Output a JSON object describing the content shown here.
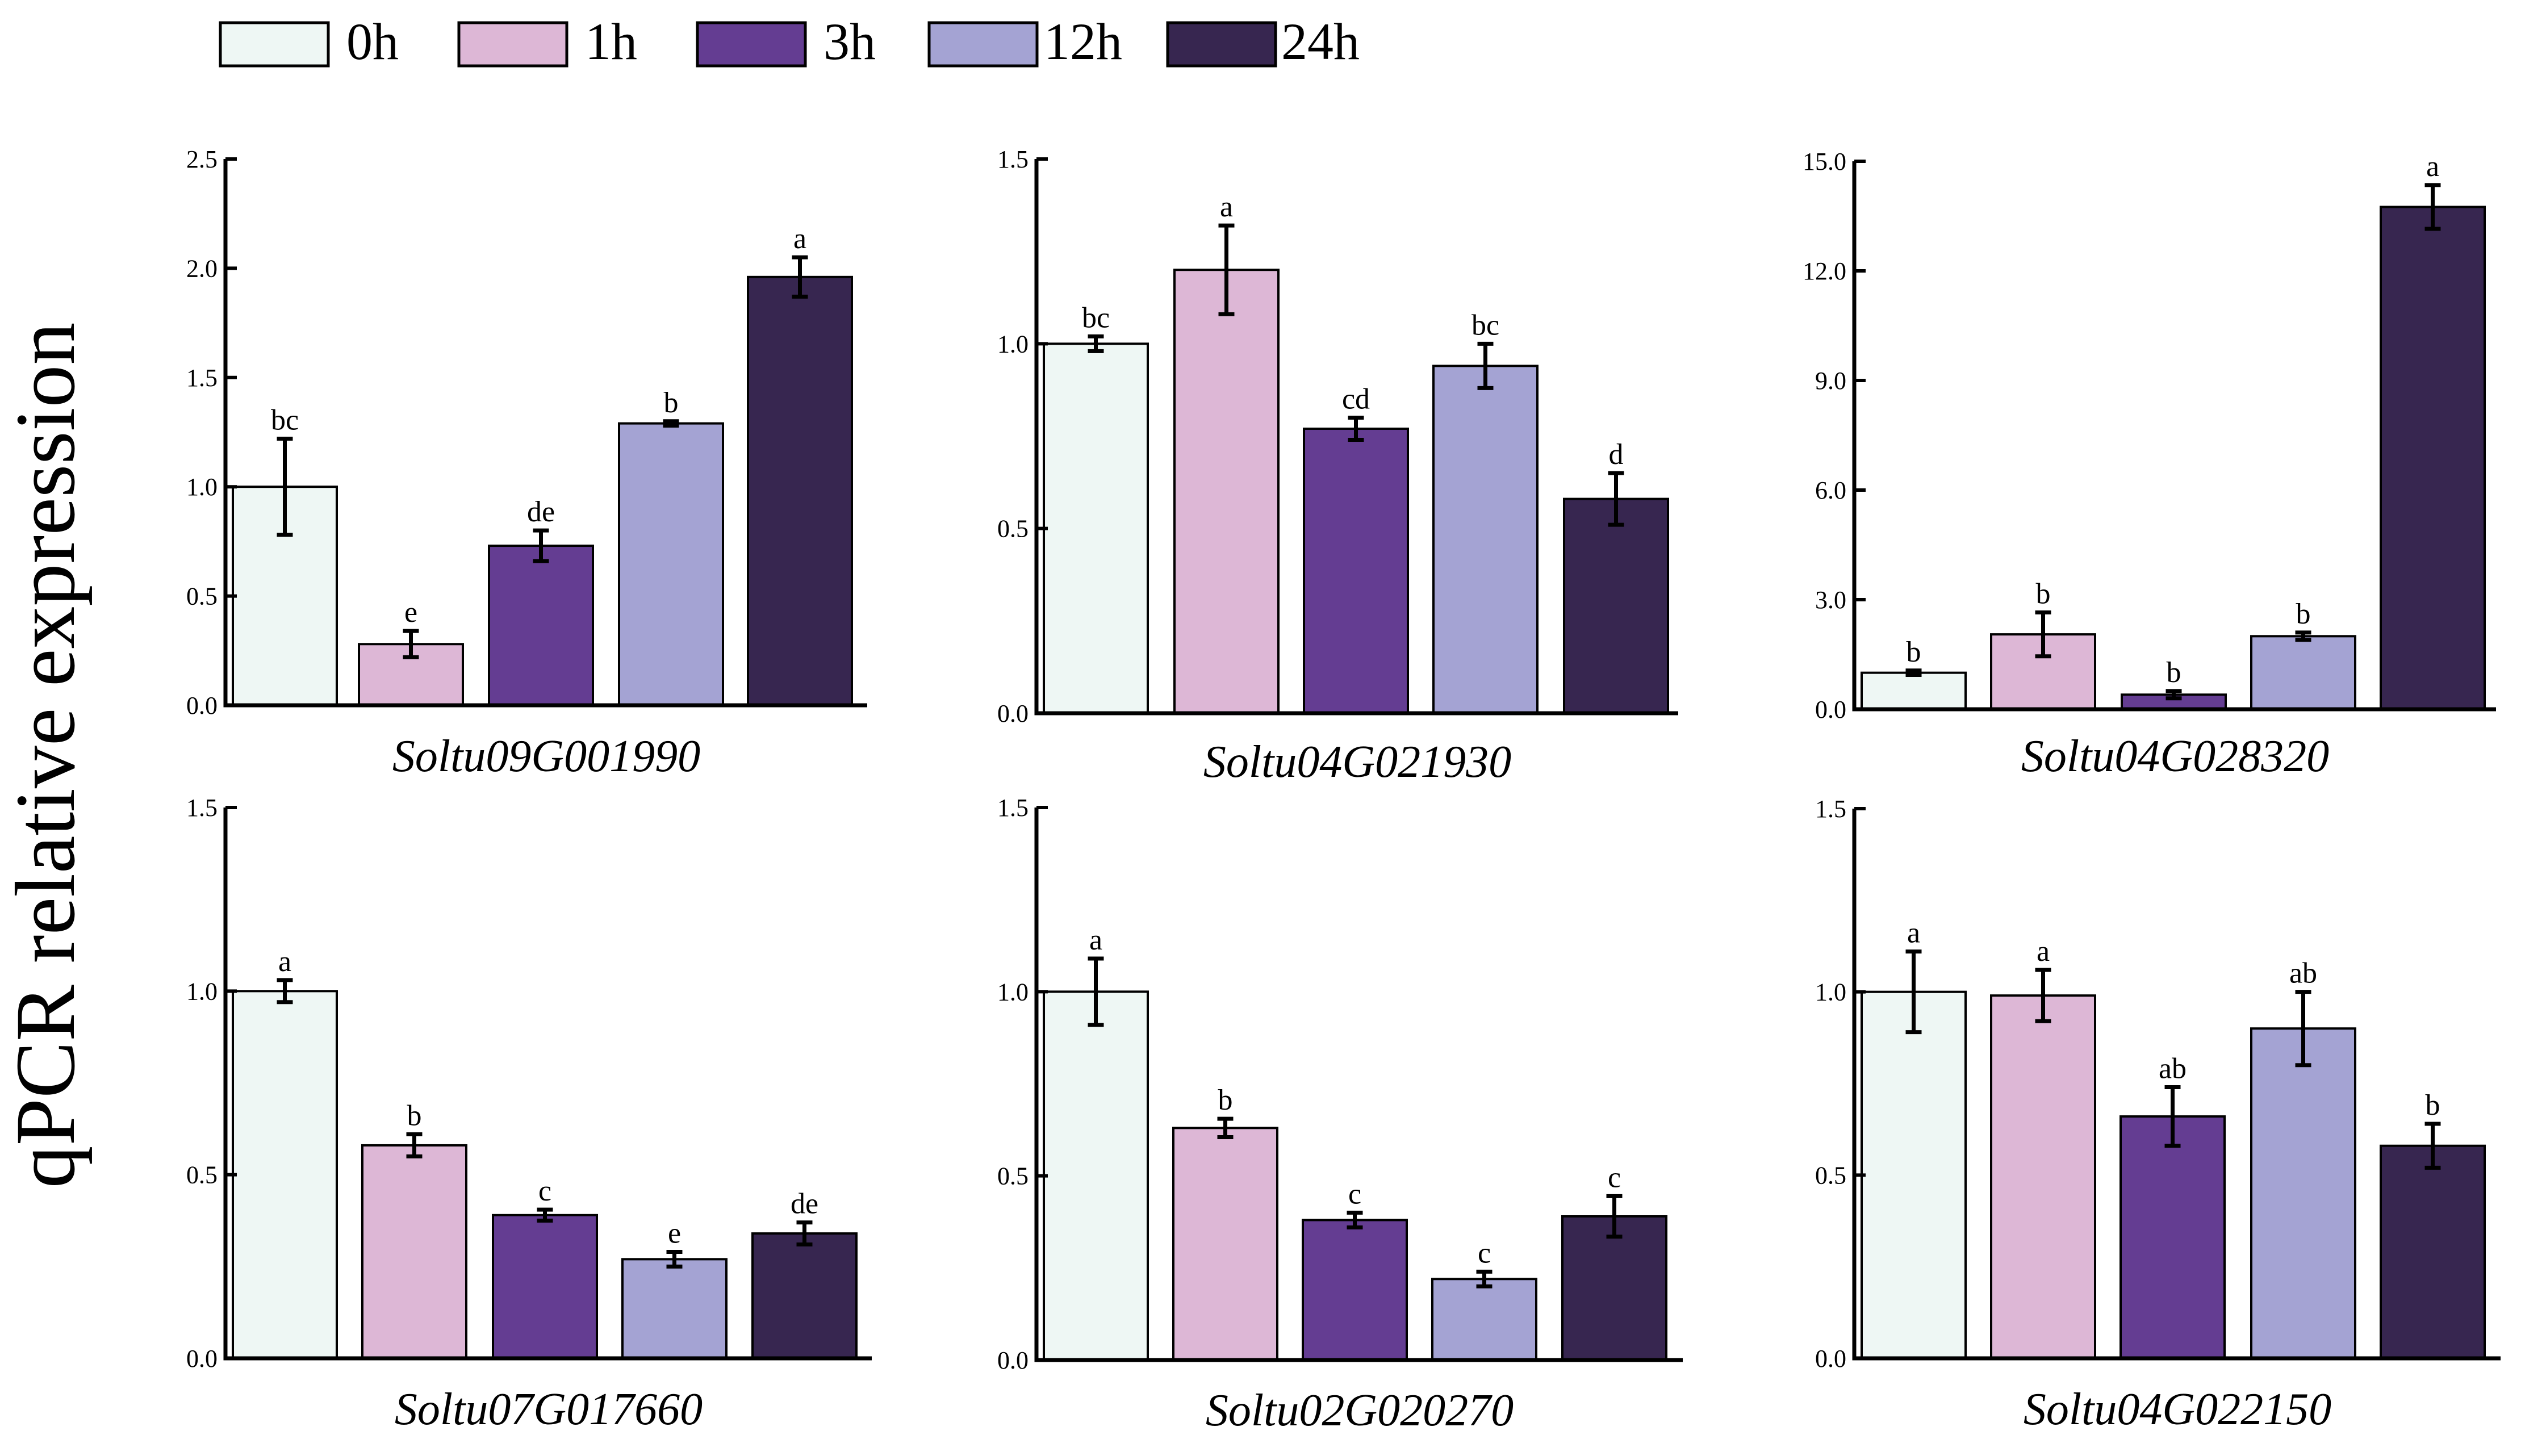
{
  "ylabel": "qPCR relative expression",
  "legend": [
    {
      "label": "0h",
      "color": "#eef7f4"
    },
    {
      "label": "1h",
      "color": "#ddb7d6"
    },
    {
      "label": "3h",
      "color": "#643d92"
    },
    {
      "label": "12h",
      "color": "#a4a3d3"
    },
    {
      "label": "24h",
      "color": "#372650"
    }
  ],
  "chart_data": [
    {
      "type": "bar",
      "title": "Soltu09G001990",
      "categories": [
        "0h",
        "1h",
        "3h",
        "12h",
        "24h"
      ],
      "values": [
        1.0,
        0.28,
        0.73,
        1.29,
        1.96
      ],
      "errors": [
        0.22,
        0.06,
        0.07,
        0.01,
        0.09
      ],
      "letters": [
        "bc",
        "e",
        "de",
        "b",
        "a"
      ],
      "ylim": [
        0,
        2.5
      ],
      "ticks": [
        "0.0",
        "0.5",
        "1.0",
        "1.5",
        "2.0",
        "2.5"
      ]
    },
    {
      "type": "bar",
      "title": "Soltu04G021930",
      "categories": [
        "0h",
        "1h",
        "3h",
        "12h",
        "24h"
      ],
      "values": [
        1.0,
        1.2,
        0.77,
        0.94,
        0.58
      ],
      "errors": [
        0.02,
        0.12,
        0.03,
        0.06,
        0.07
      ],
      "letters": [
        "bc",
        "a",
        "cd",
        "bc",
        "d"
      ],
      "ylim": [
        0,
        1.5
      ],
      "ticks": [
        "0.0",
        "0.5",
        "1.0",
        "1.5"
      ]
    },
    {
      "type": "bar",
      "title": "Soltu04G028320",
      "categories": [
        "0h",
        "1h",
        "3h",
        "12h",
        "24h"
      ],
      "values": [
        1.0,
        2.05,
        0.4,
        2.0,
        13.75
      ],
      "errors": [
        0.06,
        0.6,
        0.1,
        0.1,
        0.6
      ],
      "letters": [
        "b",
        "b",
        "b",
        "b",
        "a"
      ],
      "ylim": [
        0,
        15
      ],
      "ticks": [
        "0.0",
        "3.0",
        "6.0",
        "9.0",
        "12.0",
        "15.0"
      ]
    },
    {
      "type": "bar",
      "title": "Soltu07G017660",
      "categories": [
        "0h",
        "1h",
        "3h",
        "12h",
        "24h"
      ],
      "values": [
        1.0,
        0.58,
        0.39,
        0.27,
        0.34
      ],
      "errors": [
        0.03,
        0.03,
        0.015,
        0.02,
        0.03
      ],
      "letters": [
        "a",
        "b",
        "c",
        "e",
        "de"
      ],
      "ylim": [
        0,
        1.5
      ],
      "ticks": [
        "0.0",
        "0.5",
        "1.0",
        "1.5"
      ]
    },
    {
      "type": "bar",
      "title": "Soltu02G020270",
      "categories": [
        "0h",
        "1h",
        "3h",
        "12h",
        "24h"
      ],
      "values": [
        1.0,
        0.63,
        0.38,
        0.22,
        0.39
      ],
      "errors": [
        0.09,
        0.025,
        0.02,
        0.02,
        0.055
      ],
      "letters": [
        "a",
        "b",
        "c",
        "c",
        "c"
      ],
      "ylim": [
        0,
        1.5
      ],
      "ticks": [
        "0.0",
        "0.5",
        "1.0",
        "1.5"
      ]
    },
    {
      "type": "bar",
      "title": "Soltu04G022150",
      "categories": [
        "0h",
        "1h",
        "3h",
        "12h",
        "24h"
      ],
      "values": [
        1.0,
        0.99,
        0.66,
        0.9,
        0.58
      ],
      "errors": [
        0.11,
        0.07,
        0.08,
        0.1,
        0.06
      ],
      "letters": [
        "a",
        "a",
        "ab",
        "ab",
        "b"
      ],
      "ylim": [
        0,
        1.5
      ],
      "ticks": [
        "0.0",
        "0.5",
        "1.0",
        "1.5"
      ]
    }
  ]
}
